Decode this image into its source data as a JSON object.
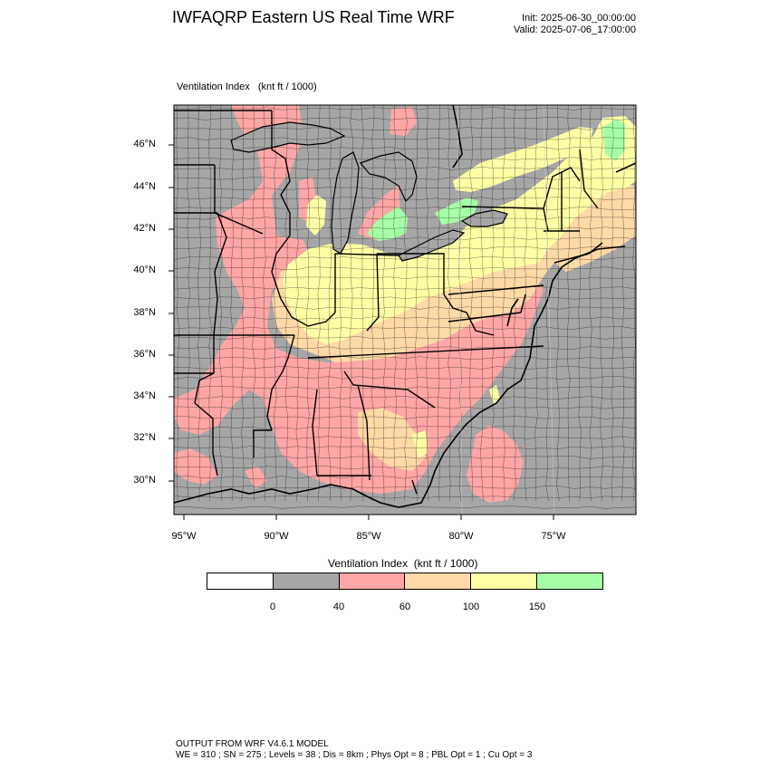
{
  "header": {
    "title": "IWFAQRP Eastern US Real Time WRF",
    "init": "Init: 2025-06-30_00:00:00",
    "valid": "Valid: 2025-07-06_17:00:00"
  },
  "map": {
    "field_label": "Ventilation Index   (knt ft / 1000)",
    "lat_labels": [
      "46°N",
      "44°N",
      "42°N",
      "40°N",
      "38°N",
      "36°N",
      "34°N",
      "32°N",
      "30°N"
    ],
    "lon_labels": [
      "95°W",
      "90°W",
      "85°W",
      "80°W",
      "75°W"
    ],
    "colors": {
      "water": "#a6a6a6",
      "lt40": "#a6a6a6",
      "40_60": "#ffa6a6",
      "60_100": "#ffd9a6",
      "100_150": "#ffffa6",
      "gt150": "#a6ffa6"
    }
  },
  "colorbar": {
    "title": "Ventilation Index  (knt ft / 1000)",
    "swatches": [
      "#ffffff",
      "#a6a6a6",
      "#ffa6a6",
      "#ffd9a6",
      "#ffffa6",
      "#a6ffa6"
    ],
    "ticks": [
      "0",
      "40",
      "60",
      "100",
      "150"
    ]
  },
  "footer": {
    "line1": "OUTPUT FROM WRF V4.6.1 MODEL",
    "line2": "WE = 310 ; SN = 275 ; Levels = 38 ; Dis = 8km ; Phys Opt = 8 ; PBL Opt = 1 ; Cu Opt = 3"
  }
}
